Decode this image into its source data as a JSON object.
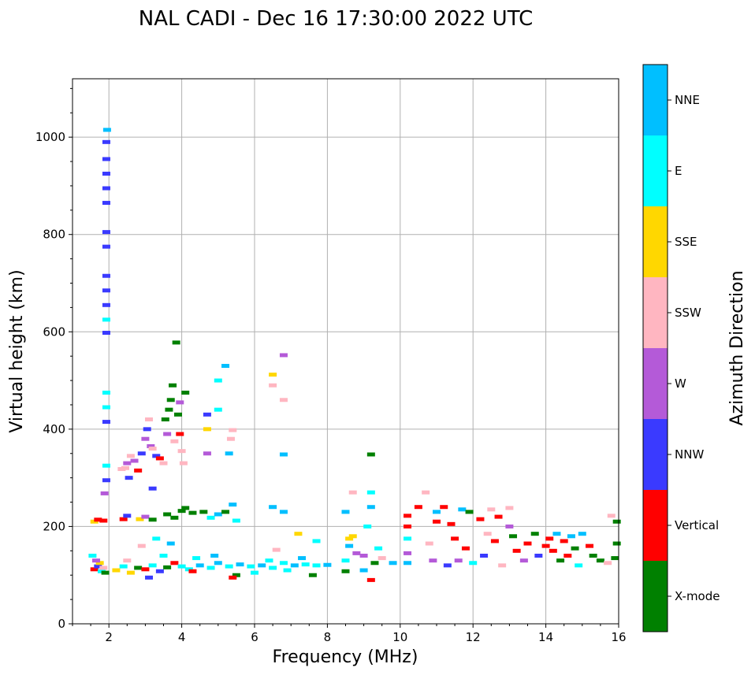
{
  "chart_data": {
    "type": "scatter",
    "title": "NAL CADI - Dec 16 17:30:00 2022 UTC",
    "xlabel": "Frequency (MHz)",
    "ylabel": "Virtual height (km)",
    "xlim": [
      1,
      16
    ],
    "ylim": [
      0,
      1120
    ],
    "xticks": [
      2,
      4,
      6,
      8,
      10,
      12,
      14,
      16
    ],
    "yticks": [
      0,
      200,
      400,
      600,
      800,
      1000
    ],
    "grid": true,
    "colorbar": {
      "label": "Azimuth Direction",
      "categories": [
        "X-mode",
        "Vertical",
        "NNW",
        "W",
        "SSW",
        "SSE",
        "E",
        "NNE"
      ],
      "colors": [
        "#008000",
        "#ff0000",
        "#3a3aff",
        "#b45ad8",
        "#ffb6c1",
        "#ffd700",
        "#00ffff",
        "#00bfff"
      ]
    },
    "points": [
      {
        "x": 1.6,
        "y": 112,
        "c": "Vertical"
      },
      {
        "x": 1.7,
        "y": 118,
        "c": "NNW"
      },
      {
        "x": 1.75,
        "y": 125,
        "c": "SSE"
      },
      {
        "x": 1.8,
        "y": 108,
        "c": "E"
      },
      {
        "x": 1.65,
        "y": 130,
        "c": "W"
      },
      {
        "x": 1.85,
        "y": 115,
        "c": "SSW"
      },
      {
        "x": 1.55,
        "y": 140,
        "c": "E"
      },
      {
        "x": 1.9,
        "y": 105,
        "c": "X-mode"
      },
      {
        "x": 1.6,
        "y": 210,
        "c": "SSE"
      },
      {
        "x": 1.7,
        "y": 214,
        "c": "Vertical"
      },
      {
        "x": 1.85,
        "y": 212,
        "c": "Vertical"
      },
      {
        "x": 1.95,
        "y": 1015,
        "c": "NNE"
      },
      {
        "x": 1.93,
        "y": 990,
        "c": "NNW"
      },
      {
        "x": 1.93,
        "y": 955,
        "c": "NNW"
      },
      {
        "x": 1.93,
        "y": 925,
        "c": "NNW"
      },
      {
        "x": 1.93,
        "y": 895,
        "c": "NNW"
      },
      {
        "x": 1.93,
        "y": 865,
        "c": "NNW"
      },
      {
        "x": 1.93,
        "y": 805,
        "c": "NNW"
      },
      {
        "x": 1.93,
        "y": 775,
        "c": "NNW"
      },
      {
        "x": 1.93,
        "y": 715,
        "c": "NNW"
      },
      {
        "x": 1.93,
        "y": 685,
        "c": "NNW"
      },
      {
        "x": 1.93,
        "y": 655,
        "c": "NNW"
      },
      {
        "x": 1.93,
        "y": 625,
        "c": "E"
      },
      {
        "x": 1.93,
        "y": 598,
        "c": "NNW"
      },
      {
        "x": 1.93,
        "y": 475,
        "c": "E"
      },
      {
        "x": 1.93,
        "y": 445,
        "c": "E"
      },
      {
        "x": 1.93,
        "y": 415,
        "c": "NNW"
      },
      {
        "x": 1.93,
        "y": 325,
        "c": "E"
      },
      {
        "x": 1.93,
        "y": 295,
        "c": "NNW"
      },
      {
        "x": 1.88,
        "y": 268,
        "c": "W"
      },
      {
        "x": 2.2,
        "y": 110,
        "c": "SSE"
      },
      {
        "x": 2.4,
        "y": 118,
        "c": "E"
      },
      {
        "x": 2.6,
        "y": 105,
        "c": "SSE"
      },
      {
        "x": 2.8,
        "y": 115,
        "c": "X-mode"
      },
      {
        "x": 3.0,
        "y": 112,
        "c": "Vertical"
      },
      {
        "x": 3.2,
        "y": 120,
        "c": "E"
      },
      {
        "x": 3.4,
        "y": 108,
        "c": "NNW"
      },
      {
        "x": 3.6,
        "y": 116,
        "c": "X-mode"
      },
      {
        "x": 3.8,
        "y": 125,
        "c": "Vertical"
      },
      {
        "x": 4.0,
        "y": 118,
        "c": "E"
      },
      {
        "x": 2.5,
        "y": 130,
        "c": "SSW"
      },
      {
        "x": 3.1,
        "y": 95,
        "c": "NNW"
      },
      {
        "x": 3.5,
        "y": 140,
        "c": "E"
      },
      {
        "x": 2.9,
        "y": 160,
        "c": "SSW"
      },
      {
        "x": 3.3,
        "y": 175,
        "c": "E"
      },
      {
        "x": 3.7,
        "y": 165,
        "c": "NNE"
      },
      {
        "x": 2.45,
        "y": 320,
        "c": "SSW"
      },
      {
        "x": 2.5,
        "y": 330,
        "c": "W"
      },
      {
        "x": 2.55,
        "y": 300,
        "c": "NNW"
      },
      {
        "x": 2.6,
        "y": 345,
        "c": "SSW"
      },
      {
        "x": 2.7,
        "y": 335,
        "c": "W"
      },
      {
        "x": 2.8,
        "y": 315,
        "c": "Vertical"
      },
      {
        "x": 2.9,
        "y": 350,
        "c": "NNW"
      },
      {
        "x": 3.0,
        "y": 380,
        "c": "W"
      },
      {
        "x": 3.05,
        "y": 400,
        "c": "NNW"
      },
      {
        "x": 3.1,
        "y": 420,
        "c": "SSW"
      },
      {
        "x": 3.15,
        "y": 365,
        "c": "W"
      },
      {
        "x": 3.2,
        "y": 360,
        "c": "SSW"
      },
      {
        "x": 3.3,
        "y": 345,
        "c": "NNW"
      },
      {
        "x": 3.4,
        "y": 340,
        "c": "Vertical"
      },
      {
        "x": 3.5,
        "y": 330,
        "c": "SSW"
      },
      {
        "x": 3.55,
        "y": 420,
        "c": "X-mode"
      },
      {
        "x": 3.6,
        "y": 390,
        "c": "W"
      },
      {
        "x": 3.65,
        "y": 440,
        "c": "X-mode"
      },
      {
        "x": 3.7,
        "y": 460,
        "c": "X-mode"
      },
      {
        "x": 3.75,
        "y": 490,
        "c": "X-mode"
      },
      {
        "x": 3.8,
        "y": 375,
        "c": "SSW"
      },
      {
        "x": 3.85,
        "y": 578,
        "c": "X-mode"
      },
      {
        "x": 3.9,
        "y": 430,
        "c": "X-mode"
      },
      {
        "x": 3.95,
        "y": 455,
        "c": "W"
      },
      {
        "x": 3.95,
        "y": 390,
        "c": "Vertical"
      },
      {
        "x": 4.0,
        "y": 355,
        "c": "SSW"
      },
      {
        "x": 4.1,
        "y": 475,
        "c": "X-mode"
      },
      {
        "x": 4.05,
        "y": 330,
        "c": "SSW"
      },
      {
        "x": 3.2,
        "y": 278,
        "c": "NNW"
      },
      {
        "x": 2.35,
        "y": 318,
        "c": "SSW"
      },
      {
        "x": 2.4,
        "y": 215,
        "c": "Vertical"
      },
      {
        "x": 2.5,
        "y": 222,
        "c": "NNW"
      },
      {
        "x": 2.85,
        "y": 215,
        "c": "SSE"
      },
      {
        "x": 3.0,
        "y": 220,
        "c": "W"
      },
      {
        "x": 3.2,
        "y": 214,
        "c": "X-mode"
      },
      {
        "x": 3.6,
        "y": 225,
        "c": "X-mode"
      },
      {
        "x": 3.8,
        "y": 218,
        "c": "X-mode"
      },
      {
        "x": 4.0,
        "y": 232,
        "c": "X-mode"
      },
      {
        "x": 4.1,
        "y": 238,
        "c": "X-mode"
      },
      {
        "x": 4.3,
        "y": 228,
        "c": "X-mode"
      },
      {
        "x": 4.6,
        "y": 230,
        "c": "X-mode"
      },
      {
        "x": 4.8,
        "y": 218,
        "c": "E"
      },
      {
        "x": 5.0,
        "y": 225,
        "c": "NNE"
      },
      {
        "x": 5.2,
        "y": 230,
        "c": "X-mode"
      },
      {
        "x": 5.4,
        "y": 245,
        "c": "NNE"
      },
      {
        "x": 5.5,
        "y": 212,
        "c": "E"
      },
      {
        "x": 4.7,
        "y": 430,
        "c": "NNW"
      },
      {
        "x": 4.7,
        "y": 400,
        "c": "SSE"
      },
      {
        "x": 4.7,
        "y": 350,
        "c": "W"
      },
      {
        "x": 5.0,
        "y": 500,
        "c": "E"
      },
      {
        "x": 5.2,
        "y": 530,
        "c": "NNE"
      },
      {
        "x": 5.35,
        "y": 380,
        "c": "SSW"
      },
      {
        "x": 5.4,
        "y": 398,
        "c": "SSW"
      },
      {
        "x": 5.3,
        "y": 350,
        "c": "NNE"
      },
      {
        "x": 5.0,
        "y": 440,
        "c": "E"
      },
      {
        "x": 4.2,
        "y": 112,
        "c": "E"
      },
      {
        "x": 4.5,
        "y": 120,
        "c": "NNE"
      },
      {
        "x": 4.8,
        "y": 115,
        "c": "E"
      },
      {
        "x": 5.0,
        "y": 125,
        "c": "NNE"
      },
      {
        "x": 5.3,
        "y": 118,
        "c": "E"
      },
      {
        "x": 5.6,
        "y": 122,
        "c": "NNE"
      },
      {
        "x": 5.9,
        "y": 118,
        "c": "E"
      },
      {
        "x": 6.2,
        "y": 120,
        "c": "NNE"
      },
      {
        "x": 6.5,
        "y": 115,
        "c": "E"
      },
      {
        "x": 6.8,
        "y": 125,
        "c": "E"
      },
      {
        "x": 7.1,
        "y": 120,
        "c": "NNE"
      },
      {
        "x": 7.4,
        "y": 122,
        "c": "E"
      },
      {
        "x": 7.7,
        "y": 120,
        "c": "E"
      },
      {
        "x": 8.0,
        "y": 121,
        "c": "NNE"
      },
      {
        "x": 4.4,
        "y": 135,
        "c": "E"
      },
      {
        "x": 4.9,
        "y": 140,
        "c": "NNE"
      },
      {
        "x": 5.5,
        "y": 100,
        "c": "X-mode"
      },
      {
        "x": 6.0,
        "y": 105,
        "c": "E"
      },
      {
        "x": 6.4,
        "y": 130,
        "c": "E"
      },
      {
        "x": 6.9,
        "y": 110,
        "c": "E"
      },
      {
        "x": 7.3,
        "y": 135,
        "c": "NNE"
      },
      {
        "x": 7.6,
        "y": 100,
        "c": "X-mode"
      },
      {
        "x": 4.3,
        "y": 108,
        "c": "Vertical"
      },
      {
        "x": 5.4,
        "y": 95,
        "c": "Vertical"
      },
      {
        "x": 6.5,
        "y": 240,
        "c": "NNE"
      },
      {
        "x": 6.8,
        "y": 230,
        "c": "NNE"
      },
      {
        "x": 6.8,
        "y": 348,
        "c": "NNE"
      },
      {
        "x": 6.5,
        "y": 512,
        "c": "SSE"
      },
      {
        "x": 6.5,
        "y": 490,
        "c": "SSW"
      },
      {
        "x": 6.8,
        "y": 552,
        "c": "W"
      },
      {
        "x": 6.8,
        "y": 460,
        "c": "SSW"
      },
      {
        "x": 7.2,
        "y": 185,
        "c": "SSE"
      },
      {
        "x": 7.7,
        "y": 170,
        "c": "E"
      },
      {
        "x": 6.6,
        "y": 152,
        "c": "SSW"
      },
      {
        "x": 8.5,
        "y": 108,
        "c": "X-mode"
      },
      {
        "x": 8.5,
        "y": 130,
        "c": "E"
      },
      {
        "x": 8.6,
        "y": 160,
        "c": "NNE"
      },
      {
        "x": 8.6,
        "y": 175,
        "c": "SSE"
      },
      {
        "x": 8.5,
        "y": 230,
        "c": "NNE"
      },
      {
        "x": 8.7,
        "y": 270,
        "c": "SSW"
      },
      {
        "x": 8.8,
        "y": 145,
        "c": "W"
      },
      {
        "x": 9.0,
        "y": 140,
        "c": "W"
      },
      {
        "x": 9.1,
        "y": 200,
        "c": "E"
      },
      {
        "x": 9.2,
        "y": 240,
        "c": "NNE"
      },
      {
        "x": 9.2,
        "y": 270,
        "c": "E"
      },
      {
        "x": 9.2,
        "y": 348,
        "c": "X-mode"
      },
      {
        "x": 9.3,
        "y": 125,
        "c": "X-mode"
      },
      {
        "x": 9.5,
        "y": 135,
        "c": "SSW"
      },
      {
        "x": 9.8,
        "y": 125,
        "c": "NNE"
      },
      {
        "x": 9.0,
        "y": 110,
        "c": "NNE"
      },
      {
        "x": 9.2,
        "y": 90,
        "c": "Vertical"
      },
      {
        "x": 8.7,
        "y": 180,
        "c": "SSE"
      },
      {
        "x": 9.4,
        "y": 155,
        "c": "E"
      },
      {
        "x": 10.2,
        "y": 125,
        "c": "NNE"
      },
      {
        "x": 10.2,
        "y": 145,
        "c": "W"
      },
      {
        "x": 10.2,
        "y": 175,
        "c": "E"
      },
      {
        "x": 10.2,
        "y": 200,
        "c": "Vertical"
      },
      {
        "x": 10.2,
        "y": 222,
        "c": "Vertical"
      },
      {
        "x": 10.5,
        "y": 240,
        "c": "Vertical"
      },
      {
        "x": 10.7,
        "y": 270,
        "c": "SSW"
      },
      {
        "x": 10.8,
        "y": 165,
        "c": "SSW"
      },
      {
        "x": 10.9,
        "y": 130,
        "c": "W"
      },
      {
        "x": 11.0,
        "y": 210,
        "c": "Vertical"
      },
      {
        "x": 11.0,
        "y": 230,
        "c": "NNE"
      },
      {
        "x": 11.2,
        "y": 240,
        "c": "Vertical"
      },
      {
        "x": 11.3,
        "y": 120,
        "c": "NNW"
      },
      {
        "x": 11.4,
        "y": 205,
        "c": "Vertical"
      },
      {
        "x": 11.5,
        "y": 175,
        "c": "Vertical"
      },
      {
        "x": 11.6,
        "y": 130,
        "c": "W"
      },
      {
        "x": 11.7,
        "y": 235,
        "c": "NNE"
      },
      {
        "x": 11.8,
        "y": 155,
        "c": "Vertical"
      },
      {
        "x": 11.9,
        "y": 230,
        "c": "X-mode"
      },
      {
        "x": 12.0,
        "y": 125,
        "c": "E"
      },
      {
        "x": 12.2,
        "y": 215,
        "c": "Vertical"
      },
      {
        "x": 12.3,
        "y": 140,
        "c": "NNW"
      },
      {
        "x": 12.5,
        "y": 235,
        "c": "SSW"
      },
      {
        "x": 12.6,
        "y": 170,
        "c": "Vertical"
      },
      {
        "x": 12.7,
        "y": 220,
        "c": "Vertical"
      },
      {
        "x": 12.8,
        "y": 120,
        "c": "SSW"
      },
      {
        "x": 13.0,
        "y": 238,
        "c": "SSW"
      },
      {
        "x": 13.1,
        "y": 180,
        "c": "X-mode"
      },
      {
        "x": 13.2,
        "y": 150,
        "c": "Vertical"
      },
      {
        "x": 13.4,
        "y": 130,
        "c": "W"
      },
      {
        "x": 13.5,
        "y": 165,
        "c": "Vertical"
      },
      {
        "x": 13.7,
        "y": 185,
        "c": "X-mode"
      },
      {
        "x": 13.8,
        "y": 140,
        "c": "NNW"
      },
      {
        "x": 14.0,
        "y": 160,
        "c": "Vertical"
      },
      {
        "x": 14.1,
        "y": 175,
        "c": "Vertical"
      },
      {
        "x": 14.2,
        "y": 150,
        "c": "Vertical"
      },
      {
        "x": 14.3,
        "y": 185,
        "c": "NNE"
      },
      {
        "x": 14.4,
        "y": 130,
        "c": "X-mode"
      },
      {
        "x": 14.5,
        "y": 170,
        "c": "Vertical"
      },
      {
        "x": 14.6,
        "y": 140,
        "c": "Vertical"
      },
      {
        "x": 14.7,
        "y": 180,
        "c": "NNE"
      },
      {
        "x": 14.8,
        "y": 155,
        "c": "X-mode"
      },
      {
        "x": 14.9,
        "y": 120,
        "c": "E"
      },
      {
        "x": 15.0,
        "y": 185,
        "c": "NNE"
      },
      {
        "x": 15.2,
        "y": 160,
        "c": "Vertical"
      },
      {
        "x": 15.3,
        "y": 140,
        "c": "X-mode"
      },
      {
        "x": 15.5,
        "y": 130,
        "c": "X-mode"
      },
      {
        "x": 15.7,
        "y": 125,
        "c": "SSW"
      },
      {
        "x": 15.8,
        "y": 222,
        "c": "SSW"
      },
      {
        "x": 15.95,
        "y": 165,
        "c": "X-mode"
      },
      {
        "x": 15.95,
        "y": 210,
        "c": "X-mode"
      },
      {
        "x": 15.9,
        "y": 135,
        "c": "X-mode"
      },
      {
        "x": 13.0,
        "y": 200,
        "c": "W"
      },
      {
        "x": 12.4,
        "y": 185,
        "c": "SSW"
      }
    ]
  }
}
